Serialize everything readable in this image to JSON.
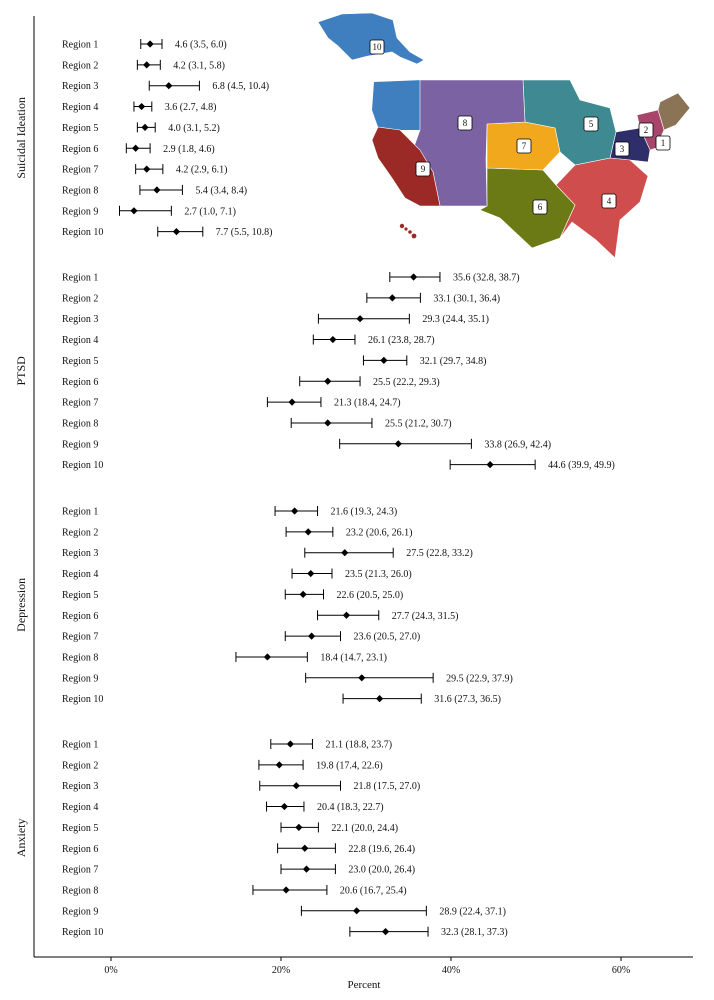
{
  "chart_data": {
    "type": "forest",
    "xlabel": "Percent",
    "xlim": [
      0,
      68
    ],
    "xticks": [
      0,
      20,
      40,
      60
    ],
    "xtick_labels": [
      "0%",
      "20%",
      "40%",
      "60%"
    ],
    "panels": [
      {
        "name": "Suicidal Ideation",
        "rows": [
          {
            "label": "Region 1",
            "est": 4.6,
            "lo": 3.5,
            "hi": 6.0,
            "text": "4.6 (3.5, 6.0)"
          },
          {
            "label": "Region 2",
            "est": 4.2,
            "lo": 3.1,
            "hi": 5.8,
            "text": "4.2 (3.1, 5.8)"
          },
          {
            "label": "Region 3",
            "est": 6.8,
            "lo": 4.5,
            "hi": 10.4,
            "text": "6.8 (4.5, 10.4)"
          },
          {
            "label": "Region 4",
            "est": 3.6,
            "lo": 2.7,
            "hi": 4.8,
            "text": "3.6 (2.7, 4.8)"
          },
          {
            "label": "Region 5",
            "est": 4.0,
            "lo": 3.1,
            "hi": 5.2,
            "text": "4.0 (3.1, 5.2)"
          },
          {
            "label": "Region 6",
            "est": 2.9,
            "lo": 1.8,
            "hi": 4.6,
            "text": "2.9 (1.8, 4.6)"
          },
          {
            "label": "Region 7",
            "est": 4.2,
            "lo": 2.9,
            "hi": 6.1,
            "text": "4.2 (2.9, 6.1)"
          },
          {
            "label": "Region 8",
            "est": 5.4,
            "lo": 3.4,
            "hi": 8.4,
            "text": "5.4 (3.4, 8.4)"
          },
          {
            "label": "Region 9",
            "est": 2.7,
            "lo": 1.0,
            "hi": 7.1,
            "text": "2.7 (1.0, 7.1)"
          },
          {
            "label": "Region 10",
            "est": 7.7,
            "lo": 5.5,
            "hi": 10.8,
            "text": "7.7 (5.5, 10.8)"
          }
        ]
      },
      {
        "name": "PTSD",
        "rows": [
          {
            "label": "Region 1",
            "est": 35.6,
            "lo": 32.8,
            "hi": 38.7,
            "text": "35.6 (32.8, 38.7)"
          },
          {
            "label": "Region 2",
            "est": 33.1,
            "lo": 30.1,
            "hi": 36.4,
            "text": "33.1 (30.1, 36.4)"
          },
          {
            "label": "Region 3",
            "est": 29.3,
            "lo": 24.4,
            "hi": 35.1,
            "text": "29.3 (24.4, 35.1)"
          },
          {
            "label": "Region 4",
            "est": 26.1,
            "lo": 23.8,
            "hi": 28.7,
            "text": "26.1 (23.8, 28.7)"
          },
          {
            "label": "Region 5",
            "est": 32.1,
            "lo": 29.7,
            "hi": 34.8,
            "text": "32.1 (29.7, 34.8)"
          },
          {
            "label": "Region 6",
            "est": 25.5,
            "lo": 22.2,
            "hi": 29.3,
            "text": "25.5 (22.2, 29.3)"
          },
          {
            "label": "Region 7",
            "est": 21.3,
            "lo": 18.4,
            "hi": 24.7,
            "text": "21.3 (18.4, 24.7)"
          },
          {
            "label": "Region 8",
            "est": 25.5,
            "lo": 21.2,
            "hi": 30.7,
            "text": "25.5 (21.2, 30.7)"
          },
          {
            "label": "Region 9",
            "est": 33.8,
            "lo": 26.9,
            "hi": 42.4,
            "text": "33.8 (26.9, 42.4)"
          },
          {
            "label": "Region 10",
            "est": 44.6,
            "lo": 39.9,
            "hi": 49.9,
            "text": "44.6 (39.9, 49.9)"
          }
        ]
      },
      {
        "name": "Depression",
        "rows": [
          {
            "label": "Region 1",
            "est": 21.6,
            "lo": 19.3,
            "hi": 24.3,
            "text": "21.6 (19.3, 24.3)"
          },
          {
            "label": "Region 2",
            "est": 23.2,
            "lo": 20.6,
            "hi": 26.1,
            "text": "23.2 (20.6, 26.1)"
          },
          {
            "label": "Region 3",
            "est": 27.5,
            "lo": 22.8,
            "hi": 33.2,
            "text": "27.5 (22.8, 33.2)"
          },
          {
            "label": "Region 4",
            "est": 23.5,
            "lo": 21.3,
            "hi": 26.0,
            "text": "23.5 (21.3, 26.0)"
          },
          {
            "label": "Region 5",
            "est": 22.6,
            "lo": 20.5,
            "hi": 25.0,
            "text": "22.6 (20.5, 25.0)"
          },
          {
            "label": "Region 6",
            "est": 27.7,
            "lo": 24.3,
            "hi": 31.5,
            "text": "27.7 (24.3, 31.5)"
          },
          {
            "label": "Region 7",
            "est": 23.6,
            "lo": 20.5,
            "hi": 27.0,
            "text": "23.6 (20.5, 27.0)"
          },
          {
            "label": "Region 8",
            "est": 18.4,
            "lo": 14.7,
            "hi": 23.1,
            "text": "18.4 (14.7, 23.1)"
          },
          {
            "label": "Region 9",
            "est": 29.5,
            "lo": 22.9,
            "hi": 37.9,
            "text": "29.5 (22.9, 37.9)"
          },
          {
            "label": "Region 10",
            "est": 31.6,
            "lo": 27.3,
            "hi": 36.5,
            "text": "31.6 (27.3, 36.5)"
          }
        ]
      },
      {
        "name": "Anxiety",
        "rows": [
          {
            "label": "Region 1",
            "est": 21.1,
            "lo": 18.8,
            "hi": 23.7,
            "text": "21.1 (18.8, 23.7)"
          },
          {
            "label": "Region 2",
            "est": 19.8,
            "lo": 17.4,
            "hi": 22.6,
            "text": "19.8 (17.4, 22.6)"
          },
          {
            "label": "Region 3",
            "est": 21.8,
            "lo": 17.5,
            "hi": 27.0,
            "text": "21.8 (17.5, 27.0)"
          },
          {
            "label": "Region 4",
            "est": 20.4,
            "lo": 18.3,
            "hi": 22.7,
            "text": "20.4 (18.3, 22.7)"
          },
          {
            "label": "Region 5",
            "est": 22.1,
            "lo": 20.0,
            "hi": 24.4,
            "text": "22.1 (20.0, 24.4)"
          },
          {
            "label": "Region 6",
            "est": 22.8,
            "lo": 19.6,
            "hi": 26.4,
            "text": "22.8 (19.6, 26.4)"
          },
          {
            "label": "Region 7",
            "est": 23.0,
            "lo": 20.0,
            "hi": 26.4,
            "text": "23.0 (20.0, 26.4)"
          },
          {
            "label": "Region 8",
            "est": 20.6,
            "lo": 16.7,
            "hi": 25.4,
            "text": "20.6 (16.7, 25.4)"
          },
          {
            "label": "Region 9",
            "est": 28.9,
            "lo": 22.4,
            "hi": 37.1,
            "text": "28.9 (22.4, 37.1)"
          },
          {
            "label": "Region 10",
            "est": 32.3,
            "lo": 28.1,
            "hi": 37.3,
            "text": "32.3 (28.1, 37.3)"
          }
        ]
      }
    ]
  },
  "map": {
    "region_labels": [
      "1",
      "2",
      "3",
      "4",
      "5",
      "6",
      "7",
      "8",
      "9",
      "10"
    ],
    "region_colors": {
      "1": "#8b7355",
      "2": "#a8456a",
      "3": "#2e2e6b",
      "4": "#d04d4d",
      "5": "#3f8a92",
      "6": "#6b7a14",
      "7": "#f2a81c",
      "8": "#7a62a3",
      "9": "#9b2a26",
      "10": "#3f7fbf"
    },
    "other_fill": "#1f78b4"
  }
}
